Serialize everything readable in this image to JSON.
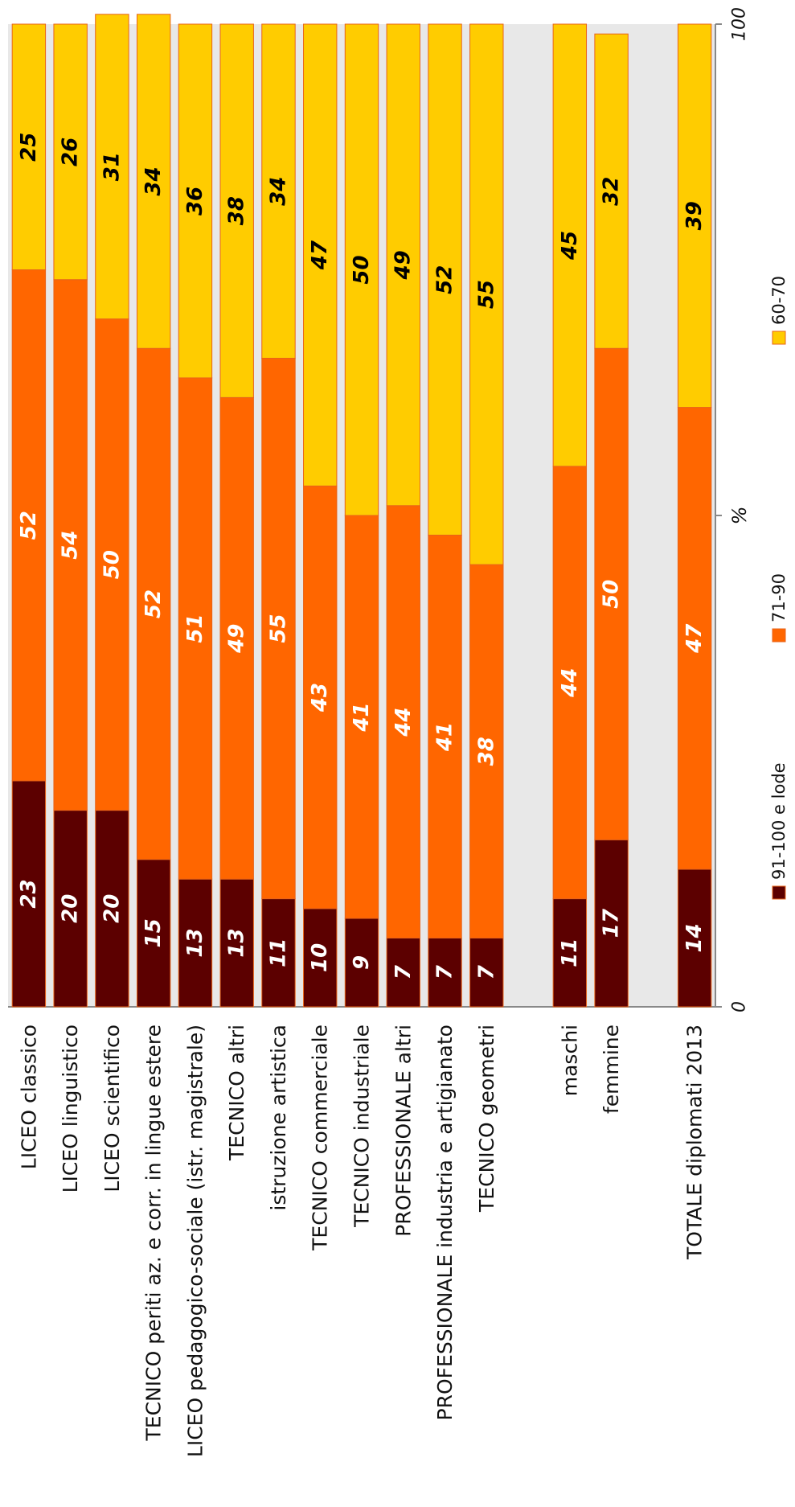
{
  "chart_data": {
    "type": "bar",
    "orientation": "horizontal-stacked-100",
    "categories": [
      "LICEO classico",
      "LICEO linguistico",
      "LICEO scientifico",
      "TECNICO periti az. e corr. in lingue estere",
      "LICEO pedagogico-sociale (istr. magistrale)",
      "TECNICO altri",
      "istruzione artistica",
      "TECNICO commerciale",
      "TECNICO industriale",
      "PROFESSIONALE altri",
      "PROFESSIONALE industria e artigianato",
      "TECNICO geometri",
      "",
      "maschi",
      "femmine",
      "",
      "TOTALE diplomati 2013"
    ],
    "series": [
      {
        "name": "91-100 e lode",
        "color": "#5c0000",
        "label_color": "#ffffff",
        "values": [
          23,
          20,
          20,
          15,
          13,
          13,
          11,
          10,
          9,
          7,
          7,
          7,
          null,
          11,
          17,
          null,
          14
        ]
      },
      {
        "name": "71-90",
        "color": "#ff6600",
        "label_color": "#ffffff",
        "values": [
          52,
          54,
          50,
          52,
          51,
          49,
          55,
          43,
          41,
          44,
          41,
          38,
          null,
          44,
          50,
          null,
          47
        ]
      },
      {
        "name": "60-70",
        "color": "#ffcc00",
        "label_color": "#000000",
        "values": [
          25,
          26,
          31,
          34,
          36,
          38,
          34,
          47,
          50,
          49,
          52,
          55,
          null,
          45,
          32,
          null,
          39
        ]
      }
    ],
    "axis": {
      "label": "%",
      "min_label": "0",
      "max_label": "100",
      "range": [
        0,
        100
      ]
    },
    "legend_position": "bottom",
    "grid": false,
    "plot_background": "#e8e8e8"
  }
}
